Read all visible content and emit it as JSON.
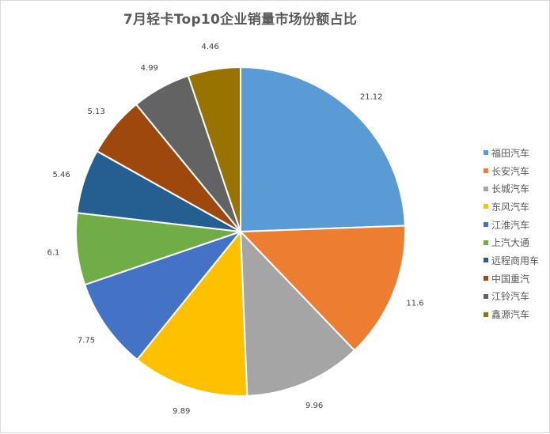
{
  "chart_data": {
    "type": "pie",
    "title": "7月轻卡Top10企业销量市场份额占比",
    "categories": [
      "福田汽车",
      "长安汽车",
      "长城汽车",
      "东风汽车",
      "江淮汽车",
      "上汽大通",
      "远程商用车",
      "中国重汽",
      "江铃汽车",
      "鑫源汽车"
    ],
    "values": [
      21.12,
      11.6,
      9.96,
      9.89,
      7.75,
      6.1,
      5.46,
      5.13,
      4.99,
      4.46
    ],
    "value_labels": [
      "21.12",
      "11.6",
      "9.96",
      "9.89",
      "7.75",
      "6.1",
      "5.46",
      "5.13",
      "4.99",
      "4.46"
    ],
    "colors": [
      "#5b9bd5",
      "#ed7d31",
      "#a5a5a5",
      "#ffc000",
      "#4472c4",
      "#70ad47",
      "#255e91",
      "#9e480e",
      "#636363",
      "#997300"
    ],
    "start_angle": "12 o'clock, clockwise",
    "legend_position": "right",
    "data_labels": "outside end"
  },
  "legend": {
    "items": [
      {
        "label": "福田汽车",
        "color": "#5b9bd5"
      },
      {
        "label": "长安汽车",
        "color": "#ed7d31"
      },
      {
        "label": "长城汽车",
        "color": "#a5a5a5"
      },
      {
        "label": "东风汽车",
        "color": "#ffc000"
      },
      {
        "label": "江淮汽车",
        "color": "#4472c4"
      },
      {
        "label": "上汽大通",
        "color": "#70ad47"
      },
      {
        "label": "远程商用车",
        "color": "#255e91"
      },
      {
        "label": "中国重汽",
        "color": "#9e480e"
      },
      {
        "label": "江铃汽车",
        "color": "#636363"
      },
      {
        "label": "鑫源汽车",
        "color": "#997300"
      }
    ]
  }
}
